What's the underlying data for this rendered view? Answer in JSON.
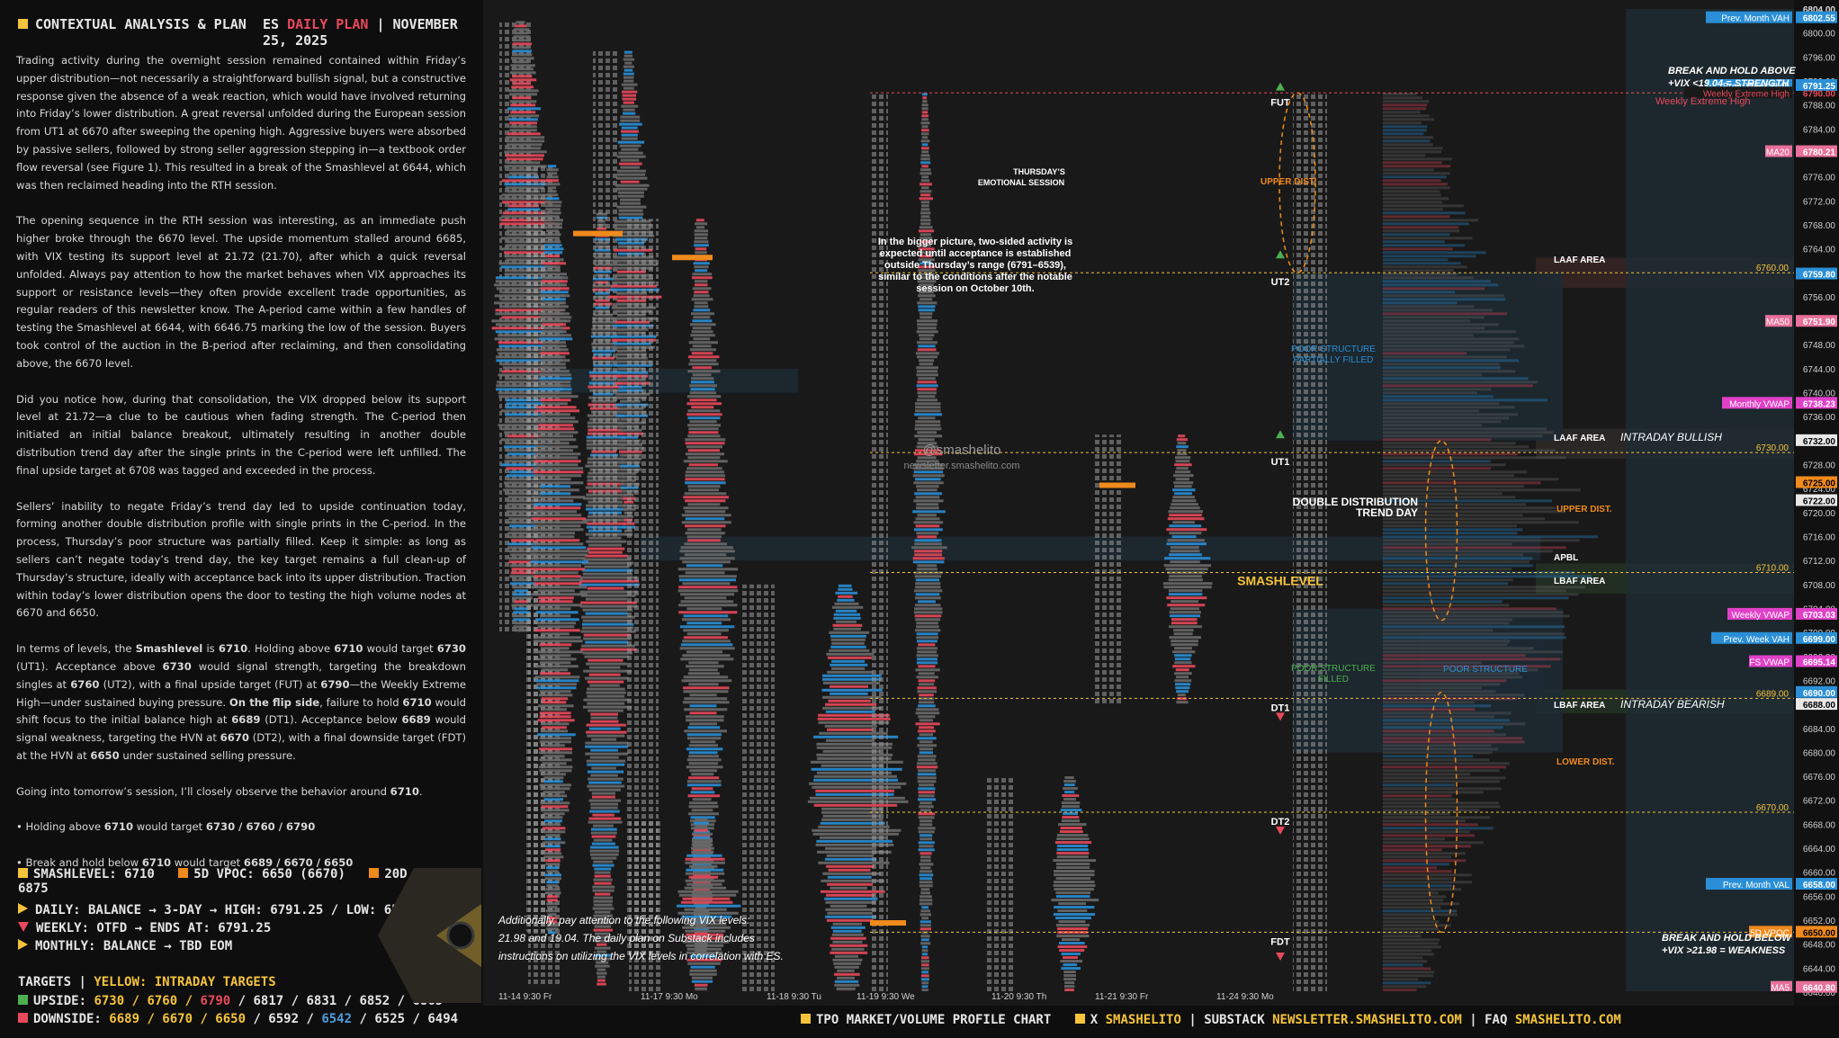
{
  "header": {
    "section_title": "CONTEXTUAL ANALYSIS & PLAN",
    "plan_prefix": "ES",
    "plan_name": "DAILY PLAN",
    "separator": "|",
    "date": "NOVEMBER 25, 2025"
  },
  "paragraphs": [
    "Trading activity during the overnight session remained contained within Friday’s upper distribution—not necessarily a straightforward bullish signal, but a constructive response given the absence of a weak reaction, which would have involved returning into Friday’s lower distribution. A great reversal unfolded during the European session from UT1 at 6670 after sweeping the opening high. Aggressive buyers were absorbed by passive sellers, followed by strong seller aggression stepping in—a textbook order flow reversal (see Figure 1). This resulted in a break of the Smashlevel at 6644, which was then reclaimed heading into the RTH session.",
    "The opening sequence in the RTH session was interesting, as an immediate push higher broke through the 6670 level. The upside momentum stalled around 6685, with VIX testing its support level at 21.72 (21.70), after which a quick reversal unfolded. Always pay attention to how the market behaves when VIX approaches its support or resistance levels—they often provide excellent trade opportunities, as regular readers of this newsletter know. The A-period came within a few handles of testing the Smashlevel at 6644, with 6646.75 marking the low of the session. Buyers took control of the auction in the B-period after reclaiming, and then consolidating above, the 6670 level.",
    "Did you notice how, during that consolidation, the VIX dropped below its support level at 21.72—a clue to be cautious when fading strength. The C-period then initiated an initial balance breakout, ultimately resulting in another double distribution trend day after the single prints in the C-period were left unfilled. The final upside target at 6708 was tagged and exceeded in the process.",
    "Sellers’ inability to negate Friday’s trend day led to upside continuation today, forming another double distribution profile with single prints in the C-period. In the process, Thursday’s poor structure was partially filled. Keep it simple: as long as sellers can’t negate today’s trend day, the key target remains a full clean-up of Thursday’s structure, ideally with acceptance back into its upper distribution. Traction within today’s lower distribution opens the door to testing the high volume nodes at 6670 and 6650."
  ],
  "levels_paragraph": {
    "t1": "In terms of levels, the ",
    "b1": "Smashlevel",
    "t2": " is ",
    "b2": "6710",
    "t3": ". Holding above ",
    "b3": "6710",
    "t4": " would target ",
    "b4": "6730",
    "t5": " (UT1). Acceptance above ",
    "b5": "6730",
    "t6": " would signal strength, targeting the breakdown singles at ",
    "b6": "6760",
    "t7": " (UT2), with a final upside target (FUT) at ",
    "b7": "6790",
    "t8": "—the Weekly Extreme High—under sustained buying pressure. ",
    "b8": "On the flip side",
    "t9": ", failure to hold ",
    "b9": "6710",
    "t10": " would shift focus to the initial balance high at ",
    "b10": "6689",
    "t11": " (DT1). Acceptance below ",
    "b11": "6689",
    "t12": " would signal weakness, targeting the HVN at ",
    "b12": "6670",
    "t13": " (DT2), with a final downside target (FDT) at the HVN at ",
    "b13": "6650",
    "t14": " under sustained selling pressure."
  },
  "closing": {
    "intro": "Going into tomorrow’s session, I’ll closely observe the behavior around ",
    "intro_level": "6710",
    "intro_end": ".",
    "b1_pre": "• Holding above ",
    "b1_lvl": "6710",
    "b1_mid": " would target ",
    "b1_tgt": "6730 / 6760 / 6790",
    "b2_pre": "• Break and hold below ",
    "b2_lvl": "6710",
    "b2_mid": " would target ",
    "b2_tgt": "6689 / 6670 / 6650"
  },
  "key_levels": {
    "smashlevel": "SMASHLEVEL: 6710",
    "vpoc5d": "5D VPOC: 6650 (6670)",
    "vpoc20d": "20D VPOC: 6875",
    "daily": "DAILY: BALANCE → 3-DAY → HIGH: 6791.25 / LOW: 6539",
    "weekly": "WEEKLY: OTFD → ENDS AT: 6791.25",
    "monthly": "MONTHLY: BALANCE → TBD EOM"
  },
  "targets": {
    "label": "TARGETS",
    "sep": "|",
    "yellow_label": "YELLOW: INTRADAY TARGETS",
    "upside_label": "UPSIDE:",
    "upside_y1": "6730 / 6760 /",
    "upside_r": "6790",
    "upside_rest": "/ 6817 / 6831 / 6852 / 6865",
    "downside_label": "DOWNSIDE:",
    "downside_y1": "6689 / 6670 / 6650",
    "downside_w1": "/ 6592 /",
    "downside_b": "6542",
    "downside_rest": "/ 6525 / 6494"
  },
  "colors": {
    "yellow": "#f5c33b",
    "orange": "#f08a1c",
    "red": "#e8495b",
    "green": "#4caf50",
    "blue": "#2a8fd6",
    "pink": "#e040c8",
    "gray_profile": "#6a6a6a"
  },
  "chart_data": {
    "type": "tpo-profile",
    "y_axis_ticks": [
      6804,
      6800,
      6796,
      6792,
      6788,
      6784,
      6780,
      6776,
      6772,
      6768,
      6764,
      6760,
      6756,
      6752,
      6748,
      6744,
      6740,
      6736,
      6732,
      6728,
      6724,
      6720,
      6716,
      6712,
      6708,
      6704,
      6700,
      6696,
      6692,
      6688,
      6684,
      6680,
      6676,
      6672,
      6668,
      6664,
      6660,
      6656,
      6652,
      6648,
      6644,
      6640
    ],
    "ylim": [
      6640,
      6804
    ],
    "x_labels": [
      "11-14  9:30 Fr",
      "11-17  9:30 Mo",
      "11-18  9:30 Tu",
      "11-19  9:30 We",
      "11-20  9:30 Th",
      "11-21  9:30 Fr",
      "11-24  9:30 Mo"
    ],
    "axis_tags": [
      {
        "text": "6804.00",
        "value": 6804.0,
        "bg": "",
        "fg": "#cfcfcf"
      },
      {
        "text": "6802.55",
        "value": 6802.55,
        "bg": "#2a8fd6",
        "fg": "#ffffff",
        "label": "Prev. Month VAH"
      },
      {
        "text": "6791.25",
        "value": 6791.25,
        "bg": "#2a8fd6",
        "fg": "#ffffff",
        "label": "Prev. Week High"
      },
      {
        "text": "6790.00",
        "value": 6790.0,
        "bg": "",
        "fg": "#e8495b",
        "label": "Weekly Extreme High"
      },
      {
        "text": "6780.21",
        "value": 6780.21,
        "bg": "#e8709a",
        "fg": "#ffffff",
        "label": "MA20"
      },
      {
        "text": "6759.80",
        "value": 6759.8,
        "bg": "#2a8fd6",
        "fg": "#ffffff",
        "label": ""
      },
      {
        "text": "6751.90",
        "value": 6751.9,
        "bg": "#e8709a",
        "fg": "#ffffff",
        "label": "MA50"
      },
      {
        "text": "6738.23",
        "value": 6738.23,
        "bg": "#e040c8",
        "fg": "#ffffff",
        "label": "Monthly VWAP"
      },
      {
        "text": "6732.00",
        "value": 6732.0,
        "bg": "#e8e8e8",
        "fg": "#000000",
        "label": ""
      },
      {
        "text": "6725.00",
        "value": 6725.0,
        "bg": "#f08a1c",
        "fg": "#000000",
        "label": ""
      },
      {
        "text": "6722.00",
        "value": 6722.0,
        "bg": "#e8e8e8",
        "fg": "#000000",
        "label": ""
      },
      {
        "text": "6703.03",
        "value": 6703.03,
        "bg": "#e040c8",
        "fg": "#ffffff",
        "label": "Weekly VWAP"
      },
      {
        "text": "6699.00",
        "value": 6699.0,
        "bg": "#2a8fd6",
        "fg": "#ffffff",
        "label": "Prev. Week VAH"
      },
      {
        "text": "6695.14",
        "value": 6695.14,
        "bg": "#e040c8",
        "fg": "#ffffff",
        "label": "FS VWAP"
      },
      {
        "text": "6690.00",
        "value": 6690.0,
        "bg": "#2a8fd6",
        "fg": "#ffffff",
        "label": ""
      },
      {
        "text": "6688.00",
        "value": 6688.0,
        "bg": "#e8e8e8",
        "fg": "#000000",
        "label": ""
      },
      {
        "text": "6658.00",
        "value": 6658.0,
        "bg": "#2a8fd6",
        "fg": "#ffffff",
        "label": "Prev. Month VAL"
      },
      {
        "text": "6650.00",
        "value": 6650.0,
        "bg": "#f08a1c",
        "fg": "#000000",
        "label": "5D VPOC"
      },
      {
        "text": "6640.80",
        "value": 6640.8,
        "bg": "#e8709a",
        "fg": "#ffffff",
        "label": "MA5"
      }
    ],
    "dashed_levels": [
      {
        "value": 6790.0,
        "label": "",
        "color": "#e8495b"
      },
      {
        "value": 6760.0,
        "label": "6760.00",
        "color": "#f5c33b"
      },
      {
        "value": 6730.0,
        "label": "6730.00",
        "color": "#f5c33b"
      },
      {
        "value": 6710.0,
        "label": "6710.00",
        "color": "#f5c33b"
      },
      {
        "value": 6689.0,
        "label": "6689.00",
        "color": "#f5c33b"
      },
      {
        "value": 6670.0,
        "label": "6670.00",
        "color": "#f5c33b"
      },
      {
        "value": 6650.0,
        "label": "",
        "color": "#f5c33b"
      }
    ],
    "target_labels": [
      "FUT",
      "UT2",
      "UT1",
      "SMASHLEVEL",
      "DT1",
      "DT2",
      "FDT"
    ],
    "target_values": [
      6790,
      6760,
      6730,
      6710,
      6689,
      6670,
      6650
    ]
  },
  "chart_text": {
    "break_above": "BREAK AND HOLD ABOVE",
    "vix_above": "+VIX <19.04 = STRENGTH",
    "break_below": "BREAK AND HOLD BELOW",
    "vix_below": "+VIX >21.98 = WEAKNESS",
    "weekly_extreme_high": "Weekly Extreme High",
    "laaf_area": "LAAF AREA",
    "intraday_bullish": "INTRADAY BULLISH",
    "apbl": "APBL",
    "lbaf_area": "LBAF AREA",
    "intraday_bearish": "INTRADAY BEARISH",
    "upper_dist": "UPPER DIST.",
    "lower_dist": "LOWER DIST.",
    "double_dist": "DOUBLE DISTRIBUTION",
    "trend_day": "TREND DAY",
    "poor_structure": "POOR STRUCTURE",
    "poor_partially_1": "POOR STRUCTURE",
    "poor_partially_2": "PARTIALLY FILLED",
    "poor_filled_1": "POOR STRUCTURE",
    "poor_filled_2": "FILLED",
    "thursday_1": "THURSDAY’S",
    "thursday_2": "EMOTIONAL SESSION",
    "bigger_picture": [
      "In the bigger picture, two-sided activity is",
      "expected until acceptance is established",
      "outside Thursday’s range (6791–6539),",
      "similar to the conditions after the notable",
      "session on October 10th."
    ],
    "handle": "@smashelito",
    "site": "newsletter.smashelito.com",
    "vix_note": [
      "Additionally, pay attention to the following VIX levels:",
      "21.98 and 19.04. The daily plan on Substack includes",
      "instructions on utilizing the VIX levels in correlation with ES."
    ]
  },
  "footer": {
    "item1": "TPO MARKET/VOLUME PROFILE CHART",
    "x_label": "X",
    "x_handle": "SMASHELITO",
    "sep": "|",
    "substack_label": "SUBSTACK",
    "substack_url": "NEWSLETTER.SMASHELITO.COM",
    "faq_label": "FAQ",
    "faq_url": "SMASHELITO.COM"
  }
}
